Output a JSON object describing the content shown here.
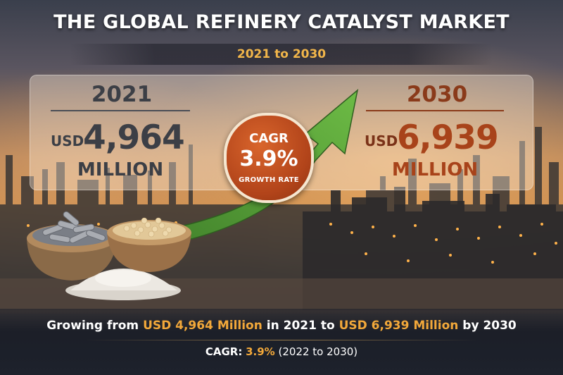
{
  "header": {
    "title": "THE GLOBAL REFINERY CATALYST MARKET",
    "period": "2021 to 2030"
  },
  "left_stat": {
    "year": "2021",
    "currency": "USD",
    "value": "4,964",
    "unit": "MILLION"
  },
  "right_stat": {
    "year": "2030",
    "currency": "USD",
    "value": "6,939",
    "unit": "MILLION"
  },
  "cagr_badge": {
    "label": "CAGR",
    "value": "3.9%",
    "caption": "GROWTH RATE"
  },
  "footer": {
    "growing_prefix": "Growing from",
    "start_value": "USD 4,964 Million",
    "mid_text": "in 2021 to",
    "end_value": "USD 6,939 Million",
    "end_text": "by 2030",
    "cagr_label": "CAGR:",
    "cagr_value": "3.9%",
    "cagr_period": "(2022 to 2030)"
  },
  "colors": {
    "accent_orange": "#f2a83a",
    "badge": "#b2441a",
    "arrow_green": "#4f9a34",
    "dark_text": "#3c3f46",
    "rust_text": "#a8431a"
  },
  "icons": [
    "growth-arrow-icon",
    "catalyst-pellets-bowl",
    "catalyst-beads-bowl",
    "catalyst-powder-pile",
    "refinery-skyline"
  ]
}
